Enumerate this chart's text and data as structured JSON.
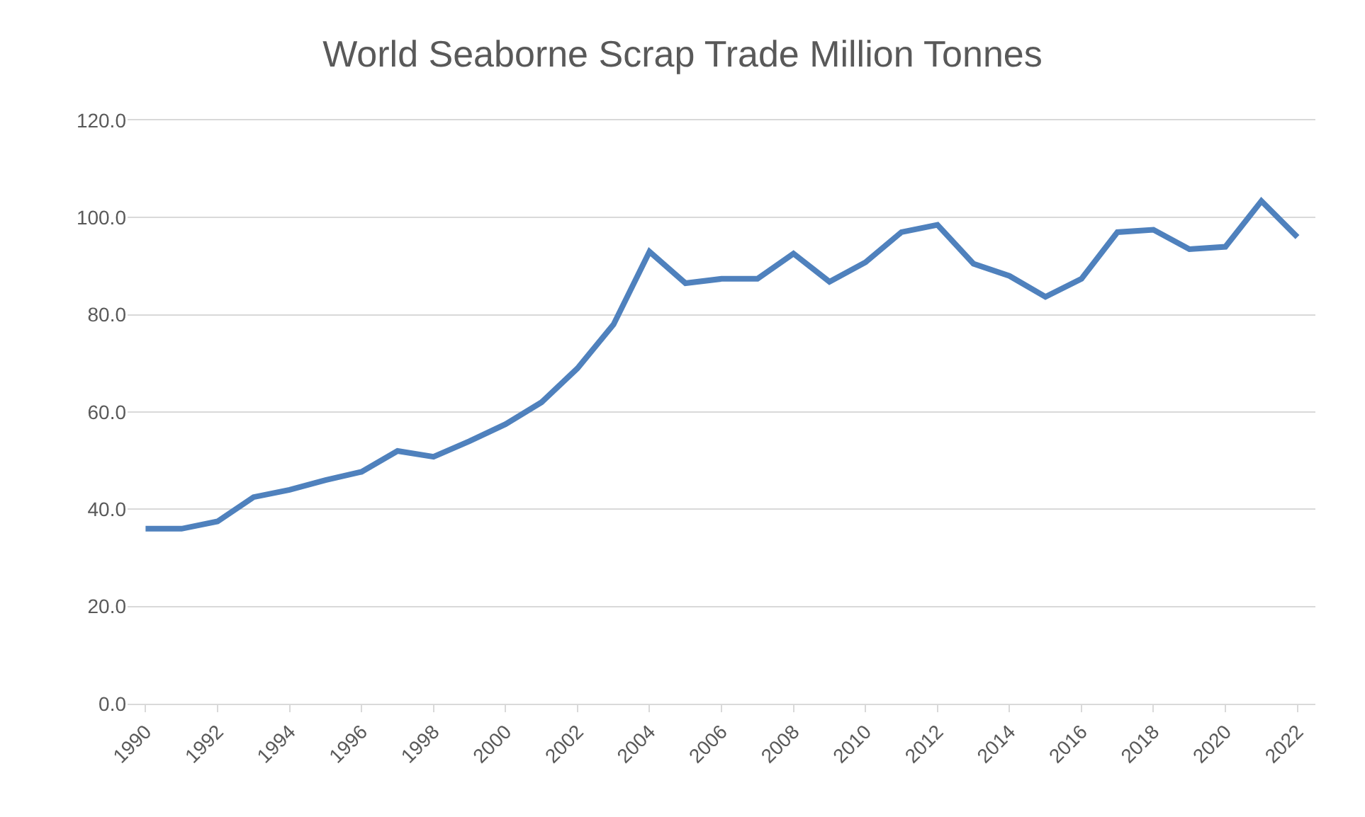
{
  "chart_data": {
    "type": "line",
    "title": "World Seaborne Scrap Trade Million Tonnes",
    "categories": [
      "1990",
      null,
      "1992",
      null,
      "1994",
      null,
      "1996",
      null,
      "1998",
      null,
      "2000",
      null,
      "2002",
      null,
      "2004",
      null,
      "2006",
      null,
      "2008",
      null,
      "2010",
      null,
      "2012",
      null,
      "2014",
      null,
      "2016",
      null,
      "2018",
      null,
      "2020",
      null,
      "2022"
    ],
    "series": [
      {
        "color": "#4f81bd",
        "values": [
          36,
          36,
          37.5,
          42.5,
          44,
          46,
          47.7,
          52,
          50.8,
          54,
          57.5,
          62,
          69,
          78,
          93,
          86.5,
          87.4,
          87.4,
          92.6,
          86.8,
          90.8,
          97,
          98.5,
          90.5,
          88,
          83.7,
          87.4,
          97,
          97.5,
          93.5,
          94,
          103.4,
          96
        ]
      }
    ],
    "ylim": [
      0,
      120
    ],
    "yticks": [
      {
        "value": 0,
        "label": "0.0"
      },
      {
        "value": 20,
        "label": "20.0"
      },
      {
        "value": 40,
        "label": "40.0"
      },
      {
        "value": 60,
        "label": "60.0"
      },
      {
        "value": 80,
        "label": "80.0"
      },
      {
        "value": 100,
        "label": "100.0"
      },
      {
        "value": 120,
        "label": "120.0"
      }
    ],
    "grid": "y",
    "marker": "none",
    "line_style": "solid"
  }
}
